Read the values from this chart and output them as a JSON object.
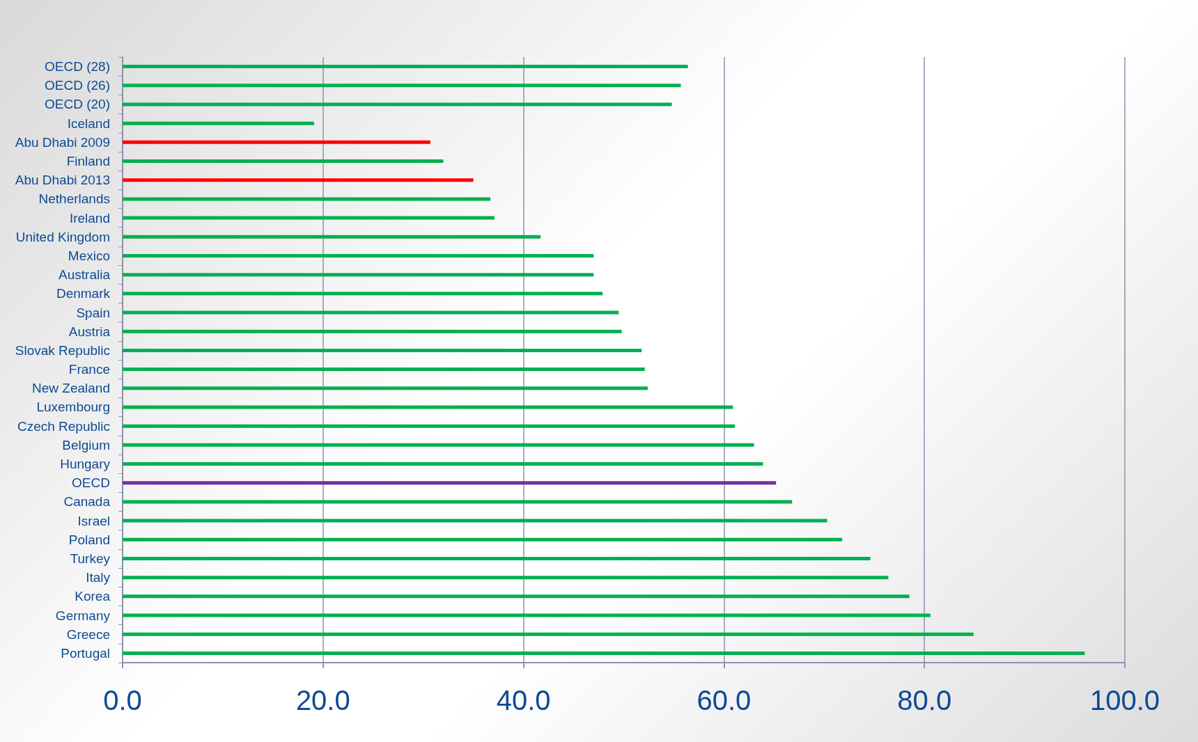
{
  "chart_data": {
    "type": "bar",
    "orientation": "horizontal",
    "categories": [
      "OECD (28)",
      "OECD (26)",
      "OECD (20)",
      "Iceland",
      "Abu Dhabi 2009",
      "Finland",
      "Abu Dhabi 2013",
      "Netherlands",
      "Ireland",
      "United Kingdom",
      "Mexico",
      "Australia",
      "Denmark",
      "Spain",
      "Austria",
      "Slovak Republic",
      "France",
      "New Zealand",
      "Luxembourg",
      "Czech Republic",
      "Belgium",
      "Hungary",
      "OECD",
      "Canada",
      "Israel",
      "Poland",
      "Turkey",
      "Italy",
      "Korea",
      "Germany",
      "Greece",
      "Portugal"
    ],
    "values": [
      56.4,
      55.7,
      54.8,
      19.1,
      30.7,
      32.0,
      35.0,
      36.7,
      37.1,
      41.7,
      47.0,
      47.0,
      47.9,
      49.5,
      49.8,
      51.8,
      52.1,
      52.4,
      60.9,
      61.1,
      63.0,
      63.9,
      65.2,
      66.8,
      70.3,
      71.8,
      74.6,
      76.4,
      78.5,
      80.6,
      84.9,
      96.0
    ],
    "colors": [
      "#00b050",
      "#00b050",
      "#00b050",
      "#00b050",
      "#ff0000",
      "#00b050",
      "#ff0000",
      "#00b050",
      "#00b050",
      "#00b050",
      "#00b050",
      "#00b050",
      "#00b050",
      "#00b050",
      "#00b050",
      "#00b050",
      "#00b050",
      "#00b050",
      "#00b050",
      "#00b050",
      "#00b050",
      "#00b050",
      "#7030a0",
      "#00b050",
      "#00b050",
      "#00b050",
      "#00b050",
      "#00b050",
      "#00b050",
      "#00b050",
      "#00b050",
      "#00b050"
    ],
    "xlim": [
      0,
      100
    ],
    "xticks": [
      {
        "value": 0,
        "label": "0.0"
      },
      {
        "value": 20,
        "label": "20.0"
      },
      {
        "value": 40,
        "label": "40.0"
      },
      {
        "value": 60,
        "label": "60.0"
      },
      {
        "value": 80,
        "label": "80.0"
      },
      {
        "value": 100,
        "label": "100.0"
      }
    ],
    "grid": "x"
  }
}
